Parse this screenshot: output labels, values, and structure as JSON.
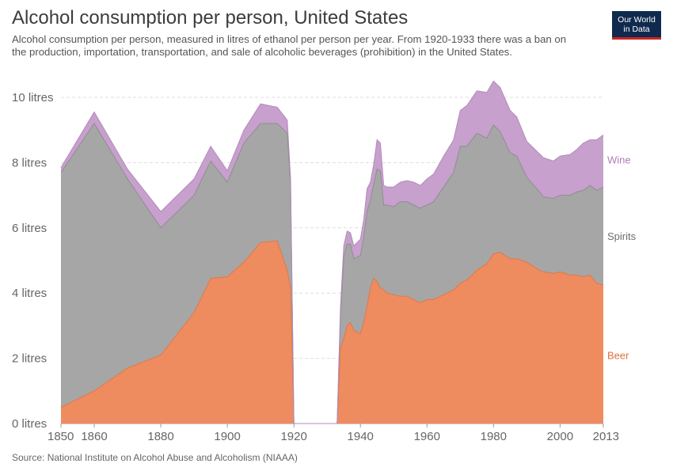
{
  "header": {
    "title": "Alcohol consumption per person, United States",
    "subtitle": "Alcohol consumption per person, measured in litres of ethanol per person per year. From 1920-1933 there was a ban on the production, importation, transportation, and sale of alcoholic beverages (prohibition) in the United States."
  },
  "logo": {
    "line1": "Our World",
    "line2": "in Data"
  },
  "source": "Source: National Institute on Alcohol Abuse and Alcoholism (NIAAA)",
  "chart_data": {
    "type": "area",
    "stacked": true,
    "title": "Alcohol consumption per person, United States",
    "xlim": [
      1850,
      2013
    ],
    "ylim": [
      0,
      10
    ],
    "x_ticks": [
      1850,
      1860,
      1880,
      1900,
      1920,
      1940,
      1960,
      1980,
      2000,
      2013
    ],
    "y_ticks": [
      {
        "value": 0,
        "label": "0 litres"
      },
      {
        "value": 2,
        "label": "2 litres"
      },
      {
        "value": 4,
        "label": "4 litres"
      },
      {
        "value": 6,
        "label": "6 litres"
      },
      {
        "value": 8,
        "label": "8 litres"
      },
      {
        "value": 10,
        "label": "10 litres"
      }
    ],
    "grid": true,
    "legend": "right",
    "x": [
      1850,
      1860,
      1870,
      1880,
      1890,
      1895,
      1900,
      1905,
      1910,
      1915,
      1918,
      1919,
      1920,
      1933,
      1934,
      1935,
      1936,
      1937,
      1938,
      1939,
      1940,
      1941,
      1942,
      1943,
      1944,
      1945,
      1946,
      1947,
      1948,
      1950,
      1952,
      1954,
      1956,
      1958,
      1960,
      1962,
      1965,
      1968,
      1970,
      1972,
      1975,
      1978,
      1980,
      1982,
      1985,
      1987,
      1990,
      1993,
      1995,
      1998,
      2000,
      2003,
      2005,
      2007,
      2009,
      2011,
      2013
    ],
    "series": [
      {
        "name": "Beer",
        "color": "#ee8c60",
        "values": [
          0.5,
          1.0,
          1.7,
          2.1,
          3.4,
          4.45,
          4.5,
          4.95,
          5.55,
          5.6,
          4.7,
          4.15,
          0,
          0,
          2.3,
          2.6,
          3.0,
          3.1,
          2.85,
          2.8,
          2.75,
          3.1,
          3.6,
          4.15,
          4.45,
          4.35,
          4.15,
          4.1,
          4.0,
          3.95,
          3.9,
          3.9,
          3.8,
          3.7,
          3.8,
          3.8,
          3.95,
          4.1,
          4.3,
          4.4,
          4.7,
          4.9,
          5.2,
          5.25,
          5.05,
          5.05,
          4.95,
          4.75,
          4.65,
          4.6,
          4.65,
          4.55,
          4.55,
          4.5,
          4.55,
          4.3,
          4.25
        ]
      },
      {
        "name": "Spirits",
        "color": "#a6a6a6",
        "values": [
          7.2,
          8.2,
          5.8,
          3.9,
          3.6,
          3.6,
          2.9,
          3.65,
          3.65,
          3.6,
          4.2,
          3.1,
          0,
          0,
          1.0,
          2.5,
          2.5,
          2.4,
          2.2,
          2.3,
          2.4,
          2.6,
          2.9,
          2.7,
          2.9,
          3.45,
          3.6,
          2.6,
          2.7,
          2.7,
          2.9,
          2.9,
          2.9,
          2.9,
          2.9,
          3.0,
          3.3,
          3.6,
          4.2,
          4.1,
          4.2,
          3.85,
          3.95,
          3.7,
          3.25,
          3.15,
          2.6,
          2.45,
          2.3,
          2.3,
          2.35,
          2.45,
          2.55,
          2.65,
          2.75,
          2.85,
          3.0
        ]
      },
      {
        "name": "Wine",
        "color": "#c7a0cd",
        "values": [
          0.15,
          0.35,
          0.3,
          0.5,
          0.5,
          0.45,
          0.35,
          0.4,
          0.6,
          0.5,
          0.4,
          0.25,
          0,
          0,
          0.25,
          0.35,
          0.4,
          0.35,
          0.4,
          0.45,
          0.5,
          0.55,
          0.7,
          0.55,
          0.6,
          0.9,
          0.85,
          0.6,
          0.55,
          0.6,
          0.6,
          0.65,
          0.7,
          0.7,
          0.8,
          0.85,
          0.95,
          1.0,
          1.1,
          1.25,
          1.3,
          1.4,
          1.35,
          1.35,
          1.3,
          1.2,
          1.1,
          1.15,
          1.2,
          1.15,
          1.2,
          1.25,
          1.3,
          1.45,
          1.4,
          1.55,
          1.6
        ]
      }
    ]
  }
}
